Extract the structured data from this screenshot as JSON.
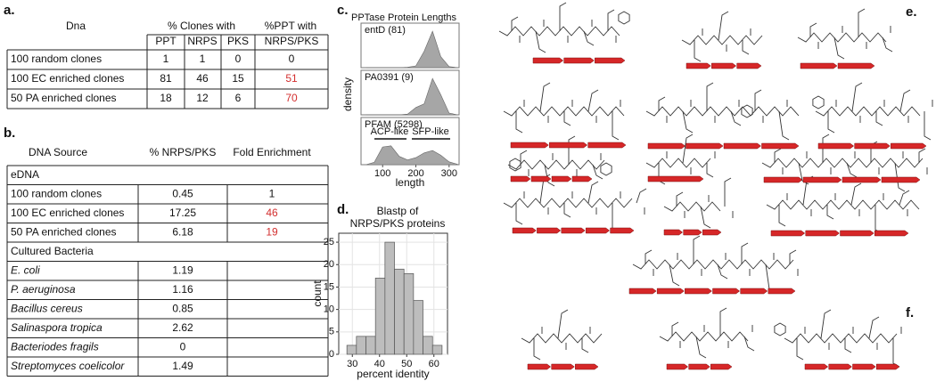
{
  "panel_labels": [
    "a.",
    "b.",
    "c.",
    "d.",
    "e.",
    "f."
  ],
  "table_a": {
    "header": [
      "Dna",
      "% Clones with",
      "%PPT  with"
    ],
    "subheader": [
      "PPT",
      "NRPS",
      "PKS",
      "NRPS/PKS"
    ],
    "rows": [
      [
        "100 random clones",
        1,
        1,
        0,
        0
      ],
      [
        "100 EC enriched clones",
        81,
        46,
        15,
        51
      ],
      [
        "50 PA enriched clones",
        18,
        12,
        6,
        70
      ]
    ]
  },
  "table_b": {
    "header": [
      "DNA Source",
      "% NRPS/PKS",
      "Fold Enrichment"
    ],
    "sections": [
      {
        "title": "eDNA",
        "rows": [
          [
            "100 random clones",
            0.45,
            1
          ],
          [
            "100 EC enriched clones",
            17.25,
            46
          ],
          [
            "50 PA enriched clones",
            6.18,
            19
          ]
        ]
      },
      {
        "title": "Cultured Bacteria",
        "rows": [
          [
            "E. coli",
            1.19
          ],
          [
            "P.  aeruginosa",
            1.16
          ],
          [
            "Bacillus cereus",
            0.85
          ],
          [
            "Salinaspora tropica",
            2.62
          ],
          [
            "Bacteriodes fragils",
            0
          ],
          [
            "Streptomyces coelicolor",
            1.49
          ]
        ]
      }
    ]
  },
  "chart_data": [
    {
      "type": "density",
      "title": "PPTase Protein Lengths",
      "y_label": "density",
      "x_label": "length",
      "xlim": [
        35,
        330
      ],
      "xticks": [
        100,
        200,
        300
      ],
      "ylim": [
        0,
        1.1
      ],
      "x": [
        50,
        75,
        100,
        125,
        150,
        175,
        200,
        225,
        250,
        275,
        300,
        325
      ],
      "series": [
        {
          "name": "entD (81)",
          "color": "#a6a6a6",
          "values": [
            0,
            0,
            0,
            0,
            0,
            0.01,
            0.05,
            0.45,
            1,
            0.3,
            0.03,
            0
          ]
        },
        {
          "name": "PA0391 (9)",
          "color": "#a6a6a6",
          "values": [
            0,
            0,
            0,
            0,
            0,
            0.02,
            0.2,
            0.3,
            1,
            0.55,
            0.05,
            0
          ]
        },
        {
          "name": "PFAM (5298)",
          "color": "#a6a6a6",
          "values": [
            0,
            0.1,
            0.75,
            0.8,
            0.35,
            0.2,
            0.3,
            0.5,
            0.6,
            0.4,
            0.12,
            0.02
          ]
        }
      ],
      "annotations": [
        "ACP-like",
        "SFP-like"
      ]
    },
    {
      "type": "histogram",
      "title": [
        "Blastp of",
        "NRPS/PKS proteins"
      ],
      "x_label": "percent identity",
      "y_label": "count",
      "bins": [
        28,
        31.5,
        35,
        38.5,
        42,
        45.5,
        49,
        52.5,
        56,
        59.5,
        63
      ],
      "counts": [
        2,
        4,
        4,
        17,
        25,
        19,
        18,
        12,
        4,
        2
      ],
      "color": "#bdbdbd",
      "xlim": [
        25,
        65
      ],
      "ylim": [
        0,
        27
      ],
      "xticks": [
        30,
        40,
        50,
        60
      ],
      "yticks": [
        0,
        5,
        10,
        15,
        20,
        25
      ],
      "grid": true
    }
  ]
}
